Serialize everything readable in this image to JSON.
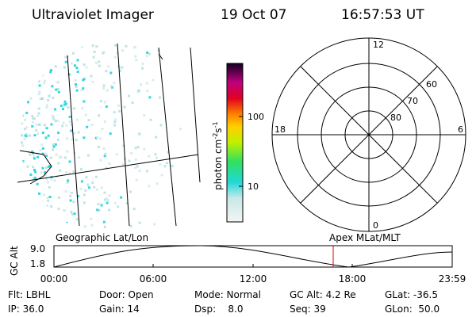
{
  "header": {
    "instrument": "Ultraviolet Imager",
    "date": "19 Oct 07",
    "time": "16:57:53 UT"
  },
  "colorbar": {
    "ticks": [
      "100",
      "10"
    ],
    "unit": [
      "photon cm",
      "-2",
      "s",
      "-1"
    ]
  },
  "polar": {
    "local_time": [
      "12",
      "6",
      "18",
      "0"
    ],
    "latitude": [
      "60",
      "70",
      "80"
    ]
  },
  "timeline": {
    "left_title": "Geographic Lat/Lon",
    "right_title": "Apex MLat/MLT",
    "y_label": "GC Alt",
    "yticks": [
      "9.0",
      "1.8"
    ],
    "xticks": [
      "00:00",
      "06:00",
      "12:00",
      "18:00",
      "23:59"
    ]
  },
  "info": {
    "rows": [
      [
        "Flt: LBHL",
        "Door: Open",
        "Mode: Normal",
        "GC Alt: 4.2 Re",
        "GLat: -36.5"
      ],
      [
        "IP: 36.0",
        "Gain: 14",
        "Dsp:    8.0",
        "Seq: 39",
        "GLon:  50.0"
      ]
    ]
  }
}
